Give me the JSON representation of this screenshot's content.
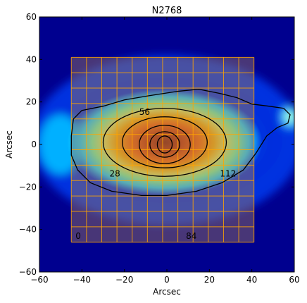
{
  "chart_data": {
    "type": "heatmap",
    "title": "N2768",
    "xlabel": "Arcsec",
    "ylabel": "Arcsec",
    "xlim": [
      -60,
      60
    ],
    "ylim": [
      -60,
      60
    ],
    "xticks": [
      -60,
      -40,
      -20,
      0,
      20,
      40,
      60
    ],
    "yticks": [
      -60,
      -40,
      -20,
      0,
      20,
      40,
      60
    ],
    "xtick_labels": [
      "−60",
      "−40",
      "−20",
      "0",
      "20",
      "40",
      "60"
    ],
    "ytick_labels": [
      "−60",
      "−40",
      "−20",
      "0",
      "20",
      "40",
      "60"
    ],
    "colormap": "jet",
    "grid_overlay": {
      "x_range": [
        -45,
        41
      ],
      "y_range": [
        -46,
        41
      ],
      "columns": 12,
      "rows": 12,
      "fill_color": "#a0785a",
      "line_color": "#ffa500"
    },
    "contours": [
      {
        "level": "outer",
        "rx": 47,
        "ry": 22,
        "cx": -1,
        "cy": 2
      },
      {
        "level": "mid",
        "rx": 29,
        "ry": 16,
        "cx": -1,
        "cy": 1
      },
      {
        "level": "inner1",
        "rx": 20,
        "ry": 12,
        "cx": -1,
        "cy": 1
      },
      {
        "level": "inner2",
        "rx": 12,
        "ry": 9,
        "cx": -1,
        "cy": 0
      },
      {
        "level": "inner3",
        "rx": 7,
        "ry": 6,
        "cx": -1,
        "cy": 0
      },
      {
        "level": "core",
        "rx": 3.5,
        "ry": 4,
        "cx": -1,
        "cy": 0
      }
    ],
    "annotations": [
      {
        "text": "56",
        "x": -13,
        "y": 14
      },
      {
        "text": "28",
        "x": -27,
        "y": -15
      },
      {
        "text": "112",
        "x": 25,
        "y": -15
      },
      {
        "text": "0",
        "x": -43,
        "y": -44.5
      },
      {
        "text": "84",
        "x": 9,
        "y": -44.5
      }
    ],
    "colors": {
      "background_blue": "#00008f",
      "frame": "#000000"
    }
  }
}
